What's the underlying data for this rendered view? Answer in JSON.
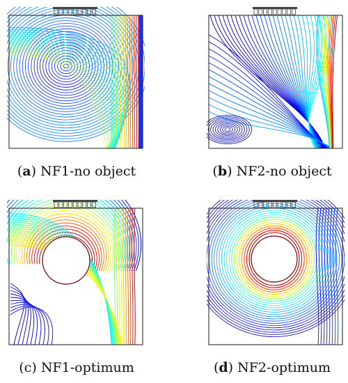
{
  "panels": [
    {
      "id": "a",
      "tag": "a",
      "label": "NF1-no object",
      "object": false
    },
    {
      "id": "b",
      "tag": "b",
      "label": "NF2-no object",
      "object": false
    },
    {
      "id": "c",
      "tag": "c",
      "label": "NF1-optimum",
      "object": true
    },
    {
      "id": "d",
      "tag": "d",
      "label": "NF2-optimum",
      "object": true
    }
  ],
  "colors": {
    "frame": "#1a1a1a",
    "heater": "#444444",
    "colormap": [
      "#00008f",
      "#0000ff",
      "#0080ff",
      "#00ffff",
      "#80ff80",
      "#ffff00",
      "#ff8000",
      "#ff0000",
      "#800000"
    ]
  }
}
